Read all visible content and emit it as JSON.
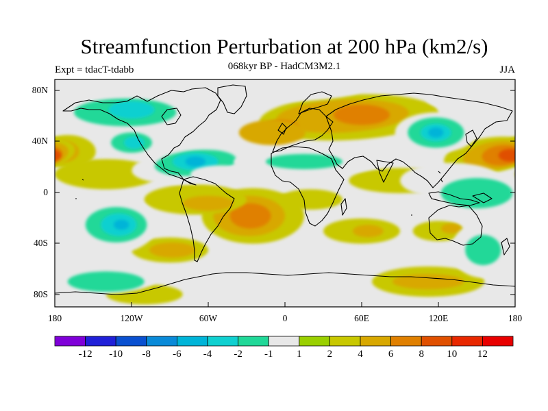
{
  "chart_data": {
    "type": "heatmap",
    "title": "Streamfunction Perturbation at 200 hPa (km2/s)",
    "subtitle": "068kyr BP - HadCM3M2.1",
    "left_label": "Expt = tdacT-tdabb",
    "right_label": "JJA",
    "variable": "streamfunction perturbation",
    "units": "km2/s",
    "projection": "cylindrical-equidistant",
    "x_range": [
      -180,
      180
    ],
    "y_range": [
      -90,
      90
    ],
    "x_tick_labels": [
      "180",
      "120W",
      "60W",
      "0",
      "60E",
      "120E",
      "180"
    ],
    "y_tick_labels": [
      "80N",
      "40N",
      "0",
      "40S",
      "80S"
    ],
    "colorbar_levels": [
      -12,
      -10,
      -8,
      -6,
      -4,
      -2,
      -1,
      1,
      2,
      4,
      6,
      8,
      10,
      12
    ],
    "colorbar_tick_labels": [
      "-12",
      "-10",
      "-8",
      "-6",
      "-4",
      "-2",
      "-1",
      "1",
      "2",
      "4",
      "6",
      "8",
      "10",
      "12"
    ],
    "colorbar_colors": [
      "#7f00d8",
      "#2020d8",
      "#0a50d0",
      "#0a8ad8",
      "#00b4d8",
      "#10d0d0",
      "#20d898",
      "#e8e8e8",
      "#9ad000",
      "#c8c800",
      "#d8a800",
      "#e08000",
      "#e05000",
      "#e82800",
      "#e80000"
    ],
    "features": [
      {
        "name": "North Pacific anticyclonic anomaly",
        "lon": -178,
        "lat": 33,
        "max_value": 9
      },
      {
        "name": "Western Pacific anticyclonic anomaly",
        "lon": 178,
        "lat": 30,
        "max_value": 9
      },
      {
        "name": "Siberian positive anomaly",
        "lon": 60,
        "lat": 62,
        "max_value": 6
      },
      {
        "name": "South Atlantic positive anomaly",
        "lon": -25,
        "lat": -18,
        "max_value": 7
      },
      {
        "name": "East Asia negative anomaly",
        "lon": 118,
        "lat": 48,
        "max_value": -6
      },
      {
        "name": "North America negative anomaly",
        "lon": -70,
        "lat": 22,
        "max_value": -6
      },
      {
        "name": "South Pacific negative anomaly",
        "lon": -128,
        "lat": -25,
        "max_value": -6
      },
      {
        "name": "Antarctic positive anomaly",
        "lon": 112,
        "lat": -70,
        "max_value": 4
      }
    ],
    "background_range": "-1 to 1"
  }
}
